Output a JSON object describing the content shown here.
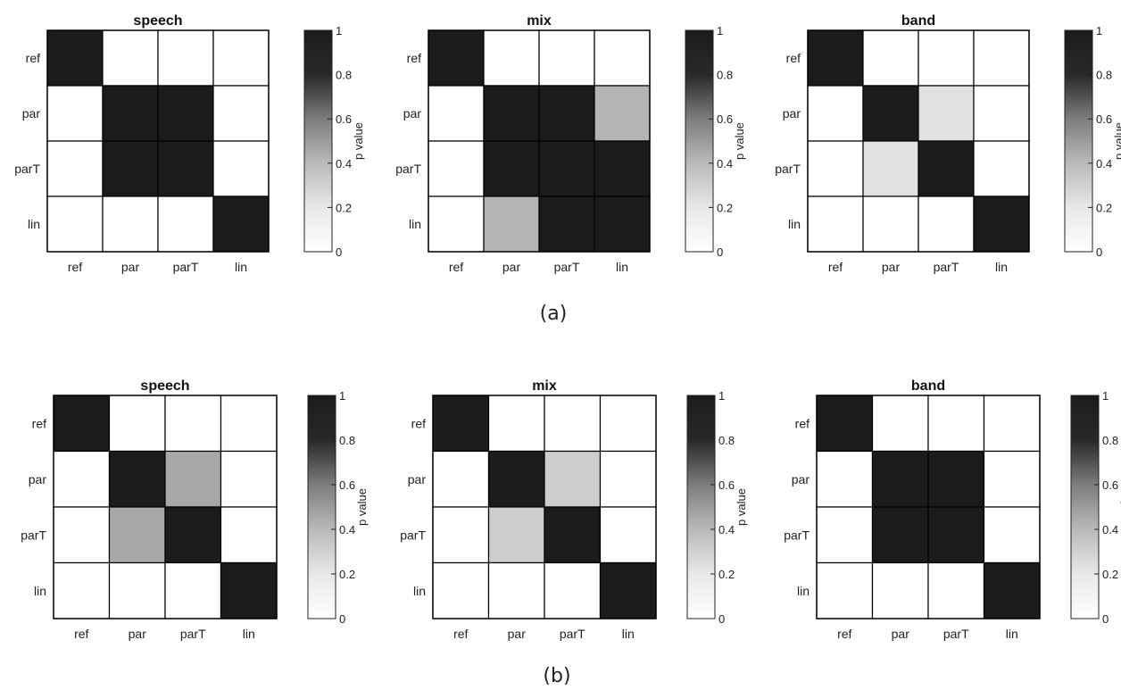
{
  "colors": {
    "low": "#ffffff",
    "high": "#1c1a1a",
    "grid": "#000000"
  },
  "rows": [
    {
      "label": "(a)"
    },
    {
      "label": "(b)"
    }
  ],
  "chart_data": [
    {
      "type": "heatmap",
      "title": "speech",
      "row": 0,
      "x_labels": [
        "ref",
        "par",
        "parT",
        "lin"
      ],
      "y_labels": [
        "ref",
        "par",
        "parT",
        "lin"
      ],
      "values": [
        [
          1,
          0,
          0,
          0
        ],
        [
          0,
          1,
          1,
          0
        ],
        [
          0,
          1,
          1,
          0
        ],
        [
          0,
          0,
          0,
          1
        ]
      ],
      "colorbar": {
        "label": "p value",
        "range": [
          0,
          1
        ],
        "ticks": [
          "0",
          "0.2",
          "0.4",
          "0.6",
          "0.8",
          "1"
        ]
      }
    },
    {
      "type": "heatmap",
      "title": "mix",
      "row": 0,
      "x_labels": [
        "ref",
        "par",
        "parT",
        "lin"
      ],
      "y_labels": [
        "ref",
        "par",
        "parT",
        "lin"
      ],
      "values": [
        [
          1,
          0,
          0,
          0
        ],
        [
          0,
          1,
          1,
          0.25
        ],
        [
          0,
          1,
          1,
          1
        ],
        [
          0,
          0.25,
          1,
          1
        ]
      ],
      "colorbar": {
        "label": "p value",
        "range": [
          0,
          1
        ],
        "ticks": [
          "0",
          "0.2",
          "0.4",
          "0.6",
          "0.8",
          "1"
        ]
      }
    },
    {
      "type": "heatmap",
      "title": "band",
      "row": 0,
      "x_labels": [
        "ref",
        "par",
        "parT",
        "lin"
      ],
      "y_labels": [
        "ref",
        "par",
        "parT",
        "lin"
      ],
      "values": [
        [
          1,
          0,
          0,
          0
        ],
        [
          0,
          1,
          0.08,
          0
        ],
        [
          0,
          0.08,
          1,
          0
        ],
        [
          0,
          0,
          0,
          1
        ]
      ],
      "colorbar": {
        "label": "p value",
        "range": [
          0,
          1
        ],
        "ticks": [
          "0",
          "0.2",
          "0.4",
          "0.6",
          "0.8",
          "1"
        ]
      }
    },
    {
      "type": "heatmap",
      "title": "speech",
      "row": 1,
      "x_labels": [
        "ref",
        "par",
        "parT",
        "lin"
      ],
      "y_labels": [
        "ref",
        "par",
        "parT",
        "lin"
      ],
      "values": [
        [
          1,
          0,
          0,
          0
        ],
        [
          0,
          1,
          0.3,
          0
        ],
        [
          0,
          0.3,
          1,
          0
        ],
        [
          0,
          0,
          0,
          1
        ]
      ],
      "colorbar": {
        "label": "p value",
        "range": [
          0,
          1
        ],
        "ticks": [
          "0",
          "0.2",
          "0.4",
          "0.6",
          "0.8",
          "1"
        ]
      }
    },
    {
      "type": "heatmap",
      "title": "mix",
      "row": 1,
      "x_labels": [
        "ref",
        "par",
        "parT",
        "lin"
      ],
      "y_labels": [
        "ref",
        "par",
        "parT",
        "lin"
      ],
      "values": [
        [
          1,
          0,
          0,
          0
        ],
        [
          0,
          1,
          0.15,
          0
        ],
        [
          0,
          0.15,
          1,
          0
        ],
        [
          0,
          0,
          0,
          1
        ]
      ],
      "colorbar": {
        "label": "p value",
        "range": [
          0,
          1
        ],
        "ticks": [
          "0",
          "0.2",
          "0.4",
          "0.6",
          "0.8",
          "1"
        ]
      }
    },
    {
      "type": "heatmap",
      "title": "band",
      "row": 1,
      "x_labels": [
        "ref",
        "par",
        "parT",
        "lin"
      ],
      "y_labels": [
        "ref",
        "par",
        "parT",
        "lin"
      ],
      "values": [
        [
          1,
          0,
          0,
          0
        ],
        [
          0,
          1,
          1,
          0
        ],
        [
          0,
          1,
          1,
          0
        ],
        [
          0,
          0,
          0,
          1
        ]
      ],
      "colorbar": {
        "label": "p value",
        "range": [
          0,
          1
        ],
        "ticks": [
          "0",
          "0.2",
          "0.4",
          "0.6",
          "0.8",
          "1"
        ]
      }
    }
  ]
}
